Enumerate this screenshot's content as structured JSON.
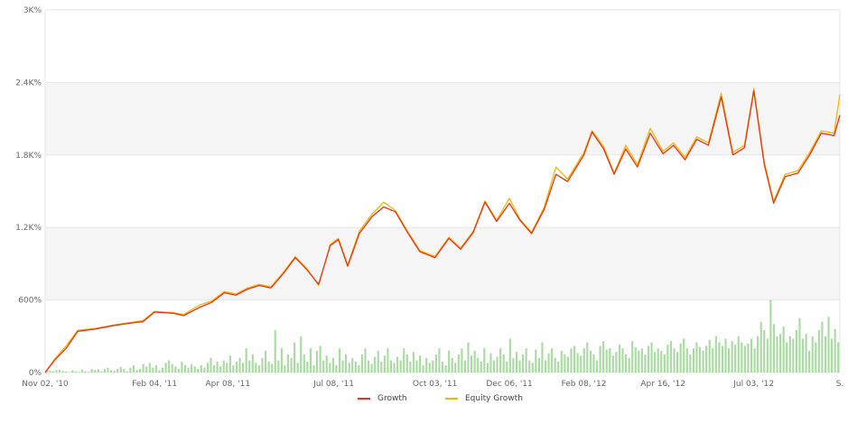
{
  "chart_data": {
    "type": "line",
    "y_axis": {
      "min": 0,
      "max": 3000,
      "ticks": [
        {
          "value": 0,
          "label": "0%"
        },
        {
          "value": 600,
          "label": "600%"
        },
        {
          "value": 1200,
          "label": "1.2K%"
        },
        {
          "value": 1800,
          "label": "1.8K%"
        },
        {
          "value": 2400,
          "label": "2.4K%"
        },
        {
          "value": 3000,
          "label": "3K%"
        }
      ]
    },
    "x_axis": {
      "start": "2010-11-02",
      "end": "2012-09-15",
      "ticks": [
        {
          "date": "2010-11-02",
          "label": "Nov 02, '10"
        },
        {
          "date": "2011-02-04",
          "label": "Feb 04, '11"
        },
        {
          "date": "2011-04-08",
          "label": "Apr 08, '11"
        },
        {
          "date": "2011-07-08",
          "label": "Jul 08, '11"
        },
        {
          "date": "2011-10-03",
          "label": "Oct 03, '11"
        },
        {
          "date": "2011-12-06",
          "label": "Dec 06, '11"
        },
        {
          "date": "2012-02-08",
          "label": "Feb 08, '12"
        },
        {
          "date": "2012-04-16",
          "label": "Apr 16, '12"
        },
        {
          "date": "2012-07-03",
          "label": "Jul 03, '12"
        },
        {
          "date": "2012-09-15",
          "label": "S."
        }
      ]
    },
    "grid": "alternating horizontal bands",
    "legend_position": "bottom-center",
    "series": [
      {
        "name": "Growth",
        "color": "#e8341c",
        "points": [
          [
            "2010-11-02",
            0
          ],
          [
            "2010-11-10",
            100
          ],
          [
            "2010-11-20",
            200
          ],
          [
            "2010-11-30",
            340
          ],
          [
            "2010-12-15",
            360
          ],
          [
            "2011-01-01",
            390
          ],
          [
            "2011-01-15",
            410
          ],
          [
            "2011-01-25",
            420
          ],
          [
            "2011-02-04",
            500
          ],
          [
            "2011-02-20",
            490
          ],
          [
            "2011-03-01",
            470
          ],
          [
            "2011-03-15",
            540
          ],
          [
            "2011-03-25",
            580
          ],
          [
            "2011-04-05",
            660
          ],
          [
            "2011-04-15",
            640
          ],
          [
            "2011-04-25",
            690
          ],
          [
            "2011-05-05",
            720
          ],
          [
            "2011-05-15",
            700
          ],
          [
            "2011-05-25",
            810
          ],
          [
            "2011-06-05",
            950
          ],
          [
            "2011-06-15",
            850
          ],
          [
            "2011-06-25",
            730
          ],
          [
            "2011-07-05",
            1050
          ],
          [
            "2011-07-12",
            1100
          ],
          [
            "2011-07-20",
            880
          ],
          [
            "2011-07-30",
            1150
          ],
          [
            "2011-08-10",
            1290
          ],
          [
            "2011-08-20",
            1370
          ],
          [
            "2011-08-30",
            1330
          ],
          [
            "2011-09-10",
            1150
          ],
          [
            "2011-09-20",
            1000
          ],
          [
            "2011-10-03",
            950
          ],
          [
            "2011-10-15",
            1110
          ],
          [
            "2011-10-25",
            1020
          ],
          [
            "2011-11-05",
            1160
          ],
          [
            "2011-11-15",
            1410
          ],
          [
            "2011-11-25",
            1250
          ],
          [
            "2011-12-06",
            1400
          ],
          [
            "2011-12-15",
            1260
          ],
          [
            "2011-12-25",
            1150
          ],
          [
            "2012-01-05",
            1350
          ],
          [
            "2012-01-15",
            1640
          ],
          [
            "2012-01-25",
            1580
          ],
          [
            "2012-02-08",
            1800
          ],
          [
            "2012-02-15",
            1990
          ],
          [
            "2012-02-25",
            1850
          ],
          [
            "2012-03-05",
            1640
          ],
          [
            "2012-03-15",
            1850
          ],
          [
            "2012-03-25",
            1700
          ],
          [
            "2012-04-05",
            1980
          ],
          [
            "2012-04-16",
            1810
          ],
          [
            "2012-04-25",
            1880
          ],
          [
            "2012-05-05",
            1760
          ],
          [
            "2012-05-15",
            1930
          ],
          [
            "2012-05-25",
            1880
          ],
          [
            "2012-06-05",
            2280
          ],
          [
            "2012-06-15",
            1800
          ],
          [
            "2012-06-25",
            1860
          ],
          [
            "2012-07-03",
            2330
          ],
          [
            "2012-07-12",
            1720
          ],
          [
            "2012-07-20",
            1400
          ],
          [
            "2012-07-30",
            1620
          ],
          [
            "2012-08-10",
            1650
          ],
          [
            "2012-08-20",
            1800
          ],
          [
            "2012-08-30",
            1980
          ],
          [
            "2012-09-10",
            1960
          ],
          [
            "2012-09-15",
            2130
          ]
        ]
      },
      {
        "name": "Equity Growth",
        "color": "#f7b500",
        "points": [
          [
            "2010-11-02",
            0
          ],
          [
            "2010-11-10",
            110
          ],
          [
            "2010-11-20",
            220
          ],
          [
            "2010-11-30",
            350
          ],
          [
            "2010-12-15",
            365
          ],
          [
            "2011-01-01",
            395
          ],
          [
            "2011-01-15",
            415
          ],
          [
            "2011-01-25",
            430
          ],
          [
            "2011-02-04",
            505
          ],
          [
            "2011-02-20",
            495
          ],
          [
            "2011-03-01",
            480
          ],
          [
            "2011-03-15",
            560
          ],
          [
            "2011-03-25",
            590
          ],
          [
            "2011-04-05",
            670
          ],
          [
            "2011-04-15",
            650
          ],
          [
            "2011-04-25",
            700
          ],
          [
            "2011-05-05",
            730
          ],
          [
            "2011-05-15",
            710
          ],
          [
            "2011-05-25",
            820
          ],
          [
            "2011-06-05",
            960
          ],
          [
            "2011-06-15",
            860
          ],
          [
            "2011-06-25",
            720
          ],
          [
            "2011-07-05",
            1060
          ],
          [
            "2011-07-12",
            1110
          ],
          [
            "2011-07-20",
            890
          ],
          [
            "2011-07-30",
            1170
          ],
          [
            "2011-08-10",
            1310
          ],
          [
            "2011-08-20",
            1410
          ],
          [
            "2011-08-30",
            1340
          ],
          [
            "2011-09-10",
            1160
          ],
          [
            "2011-09-20",
            1010
          ],
          [
            "2011-10-03",
            960
          ],
          [
            "2011-10-15",
            1120
          ],
          [
            "2011-10-25",
            1030
          ],
          [
            "2011-11-05",
            1170
          ],
          [
            "2011-11-15",
            1420
          ],
          [
            "2011-11-25",
            1260
          ],
          [
            "2011-12-06",
            1440
          ],
          [
            "2011-12-15",
            1270
          ],
          [
            "2011-12-25",
            1160
          ],
          [
            "2012-01-05",
            1370
          ],
          [
            "2012-01-15",
            1700
          ],
          [
            "2012-01-25",
            1600
          ],
          [
            "2012-02-08",
            1820
          ],
          [
            "2012-02-15",
            2000
          ],
          [
            "2012-02-25",
            1870
          ],
          [
            "2012-03-05",
            1650
          ],
          [
            "2012-03-15",
            1880
          ],
          [
            "2012-03-25",
            1720
          ],
          [
            "2012-04-05",
            2020
          ],
          [
            "2012-04-16",
            1830
          ],
          [
            "2012-04-25",
            1900
          ],
          [
            "2012-05-05",
            1780
          ],
          [
            "2012-05-15",
            1950
          ],
          [
            "2012-05-25",
            1900
          ],
          [
            "2012-06-05",
            2310
          ],
          [
            "2012-06-15",
            1820
          ],
          [
            "2012-06-25",
            1880
          ],
          [
            "2012-07-03",
            2350
          ],
          [
            "2012-07-12",
            1740
          ],
          [
            "2012-07-20",
            1420
          ],
          [
            "2012-07-30",
            1640
          ],
          [
            "2012-08-10",
            1670
          ],
          [
            "2012-08-20",
            1820
          ],
          [
            "2012-08-30",
            2000
          ],
          [
            "2012-09-10",
            1980
          ],
          [
            "2012-09-15",
            2300
          ]
        ]
      }
    ],
    "volume": {
      "color": "#a8dca0",
      "values": [
        20,
        15,
        10,
        20,
        25,
        15,
        10,
        5,
        20,
        10,
        5,
        25,
        10,
        5,
        30,
        20,
        25,
        10,
        30,
        40,
        20,
        15,
        30,
        45,
        30,
        10,
        40,
        60,
        20,
        30,
        70,
        50,
        80,
        40,
        60,
        20,
        40,
        80,
        100,
        70,
        50,
        30,
        90,
        60,
        40,
        70,
        50,
        30,
        60,
        40,
        80,
        120,
        60,
        90,
        50,
        100,
        80,
        140,
        60,
        90,
        120,
        80,
        200,
        100,
        150,
        80,
        60,
        120,
        180,
        90,
        70,
        350,
        100,
        200,
        60,
        150,
        120,
        250,
        80,
        300,
        150,
        90,
        200,
        60,
        180,
        220,
        100,
        140,
        80,
        120,
        60,
        200,
        100,
        150,
        80,
        120,
        90,
        60,
        150,
        200,
        100,
        70,
        130,
        180,
        90,
        140,
        200,
        100,
        80,
        130,
        100,
        200,
        150,
        90,
        170,
        100,
        140,
        60,
        120,
        80,
        100,
        150,
        200,
        90,
        60,
        180,
        120,
        80,
        150,
        200,
        100,
        250,
        140,
        180,
        120,
        90,
        200,
        80,
        160,
        100,
        130,
        200,
        150,
        90,
        280,
        120,
        170,
        100,
        150,
        200,
        100,
        80,
        190,
        120,
        250,
        100,
        160,
        200,
        120,
        90,
        180,
        150,
        130,
        200,
        220,
        160,
        140,
        200,
        250,
        180,
        150,
        100,
        220,
        260,
        190,
        200,
        140,
        170,
        230,
        200,
        150,
        120,
        260,
        210,
        180,
        200,
        150,
        220,
        250,
        170,
        200,
        180,
        150,
        230,
        260,
        200,
        170,
        240,
        280,
        200,
        150,
        200,
        250,
        210,
        180,
        220,
        270,
        200,
        300,
        250,
        220,
        280,
        200,
        260,
        230,
        300,
        250,
        220,
        240,
        280,
        200,
        300,
        420,
        350,
        280,
        600,
        400,
        300,
        320,
        380,
        250,
        300,
        280,
        350,
        450,
        280,
        320,
        180,
        300,
        250,
        350,
        420,
        300,
        460,
        280,
        360,
        250
      ]
    }
  },
  "legend": {
    "items": [
      {
        "label": "Growth",
        "color": "#e8341c"
      },
      {
        "label": "Equity Growth",
        "color": "#f7b500"
      }
    ]
  }
}
